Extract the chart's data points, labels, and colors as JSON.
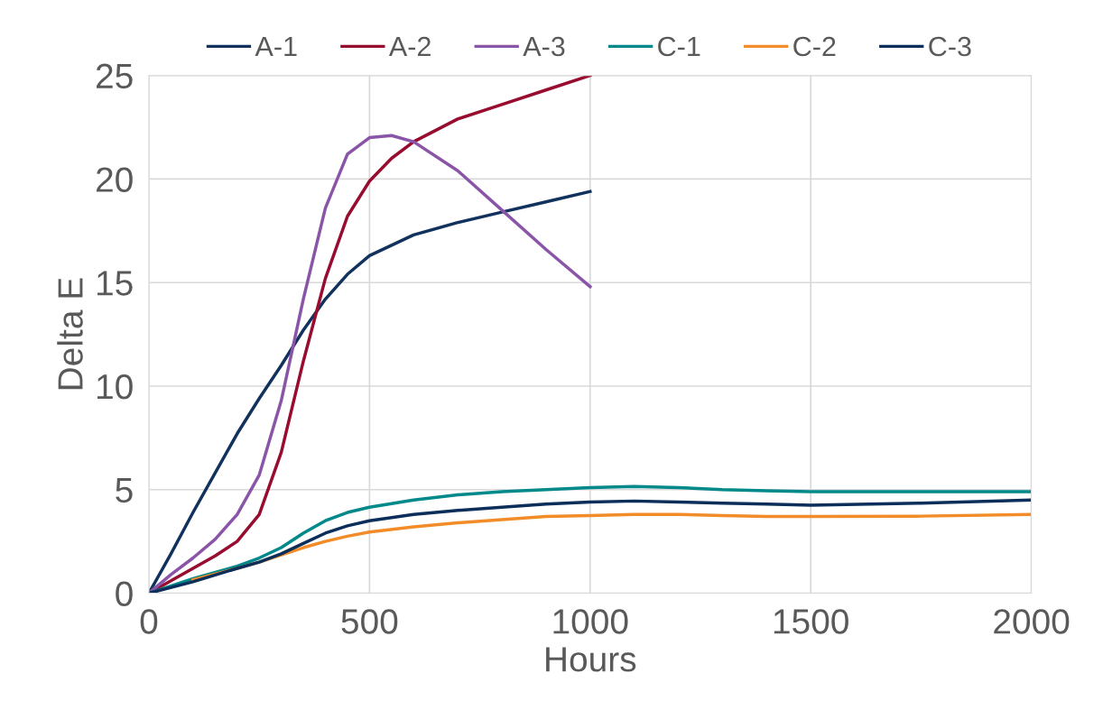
{
  "chart_data": {
    "type": "line",
    "xlabel": "Hours",
    "ylabel": "Delta E",
    "xlim": [
      0,
      2000
    ],
    "xticks": [
      0,
      500,
      1000,
      1500,
      2000
    ],
    "ylim": [
      0,
      25
    ],
    "yticks": [
      0,
      5,
      10,
      15,
      20,
      25
    ],
    "grid": true,
    "legend": "top",
    "line_style": "solid",
    "series": [
      {
        "name": "A-1",
        "color": "#12325e",
        "x": [
          0,
          50,
          100,
          150,
          200,
          250,
          300,
          350,
          400,
          450,
          500,
          600,
          700,
          800,
          900,
          1000
        ],
        "values": [
          0,
          1.9,
          3.9,
          5.8,
          7.7,
          9.4,
          11.0,
          12.7,
          14.2,
          15.4,
          16.3,
          17.3,
          17.9,
          18.4,
          18.9,
          19.4
        ]
      },
      {
        "name": "A-2",
        "color": "#980c2f",
        "x": [
          0,
          50,
          100,
          150,
          200,
          250,
          300,
          350,
          400,
          450,
          500,
          550,
          600,
          700,
          800,
          900,
          1000
        ],
        "values": [
          0,
          0.6,
          1.2,
          1.8,
          2.5,
          3.8,
          6.8,
          11.2,
          15.2,
          18.2,
          19.9,
          21.0,
          21.8,
          22.9,
          23.6,
          24.3,
          25
        ]
      },
      {
        "name": "A-3",
        "color": "#8a55a8",
        "x": [
          0,
          50,
          100,
          150,
          200,
          250,
          300,
          350,
          400,
          450,
          500,
          550,
          600,
          700,
          800,
          900,
          1000
        ],
        "values": [
          0,
          0.9,
          1.7,
          2.6,
          3.8,
          5.7,
          9.3,
          14.2,
          18.6,
          21.2,
          22.0,
          22.1,
          21.8,
          20.4,
          18.5,
          16.6,
          14.8
        ]
      },
      {
        "name": "C-1",
        "color": "#00898a",
        "x": [
          0,
          100,
          200,
          250,
          300,
          350,
          400,
          450,
          500,
          600,
          700,
          800,
          900,
          1000,
          1100,
          1200,
          1300,
          1400,
          1500,
          1750,
          2000
        ],
        "values": [
          0,
          0.7,
          1.3,
          1.7,
          2.2,
          2.9,
          3.5,
          3.9,
          4.15,
          4.5,
          4.75,
          4.9,
          5.0,
          5.1,
          5.15,
          5.1,
          5.0,
          4.95,
          4.9,
          4.9,
          4.9
        ]
      },
      {
        "name": "C-2",
        "color": "#f28c28",
        "x": [
          100,
          200,
          250,
          300,
          350,
          400,
          450,
          500,
          600,
          700,
          800,
          900,
          1000,
          1100,
          1200,
          1300,
          1400,
          1500,
          1750,
          2000
        ],
        "values": [
          0.65,
          1.2,
          1.5,
          1.85,
          2.2,
          2.5,
          2.75,
          2.95,
          3.2,
          3.4,
          3.55,
          3.7,
          3.75,
          3.8,
          3.8,
          3.75,
          3.7,
          3.7,
          3.72,
          3.8
        ]
      },
      {
        "name": "C-3",
        "color": "#0b2e5a",
        "x": [
          0,
          100,
          200,
          250,
          300,
          350,
          400,
          450,
          500,
          600,
          700,
          800,
          900,
          1000,
          1100,
          1200,
          1300,
          1400,
          1500,
          1750,
          2000
        ],
        "values": [
          0,
          0.55,
          1.2,
          1.5,
          1.9,
          2.4,
          2.9,
          3.25,
          3.5,
          3.8,
          4.0,
          4.15,
          4.3,
          4.4,
          4.45,
          4.4,
          4.35,
          4.3,
          4.25,
          4.35,
          4.5
        ]
      }
    ]
  }
}
